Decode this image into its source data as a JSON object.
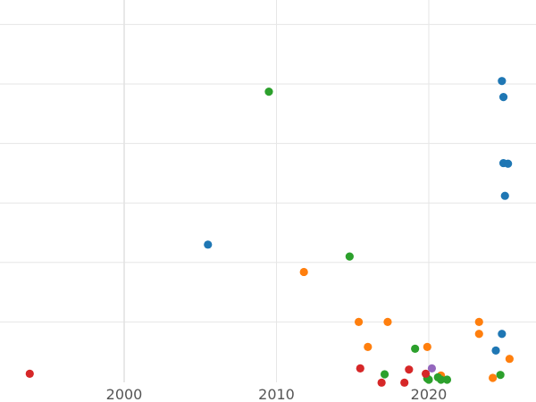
{
  "chart_data": {
    "type": "scatter",
    "title": "",
    "xlabel": "",
    "ylabel": "",
    "xlim": [
      1992,
      2027
    ],
    "ylim": [
      0,
      6.4
    ],
    "x_ticks": [
      2000,
      2010,
      2020
    ],
    "x_tick_labels": [
      "2000",
      "2010",
      "2020"
    ],
    "x_minor_grid": [
      2000,
      2010,
      2020
    ],
    "y_grid": [
      1,
      2,
      3,
      4,
      5,
      6
    ],
    "grid": true,
    "legend": "none",
    "colors": {
      "blue": "#1f77b4",
      "orange": "#ff7f0e",
      "green": "#2ca02c",
      "red": "#d62728",
      "purple": "#9467bd"
    },
    "series": [
      {
        "color": "#1f77b4",
        "x": [
          2005.5,
          2024.8,
          2024.9,
          2024.9,
          2025.2,
          2025.0,
          2024.4,
          2024.8
        ],
        "y": [
          2.3,
          5.05,
          4.78,
          3.67,
          3.66,
          3.12,
          0.52,
          0.8
        ]
      },
      {
        "color": "#ff7f0e",
        "x": [
          2011.8,
          2015.4,
          2017.3,
          2016.0,
          2019.9,
          2023.3,
          2023.3,
          2025.3,
          2020.8,
          2024.2
        ],
        "y": [
          1.84,
          1.0,
          1.0,
          0.58,
          0.58,
          1.0,
          0.8,
          0.38,
          0.1,
          0.06
        ]
      },
      {
        "color": "#2ca02c",
        "x": [
          2009.5,
          2014.8,
          2019.1,
          2017.1,
          2019.9,
          2020.0,
          2020.6,
          2020.8,
          2021.2,
          2024.7
        ],
        "y": [
          4.87,
          2.1,
          0.55,
          0.12,
          0.05,
          0.03,
          0.07,
          0.03,
          0.03,
          0.11
        ]
      },
      {
        "color": "#d62728",
        "x": [
          1993.8,
          2015.5,
          2018.7,
          2019.8,
          2016.9,
          2018.4
        ],
        "y": [
          0.13,
          0.22,
          0.2,
          0.13,
          -0.02,
          -0.02
        ]
      },
      {
        "color": "#9467bd",
        "x": [
          2020.2
        ],
        "y": [
          0.22
        ]
      }
    ]
  }
}
